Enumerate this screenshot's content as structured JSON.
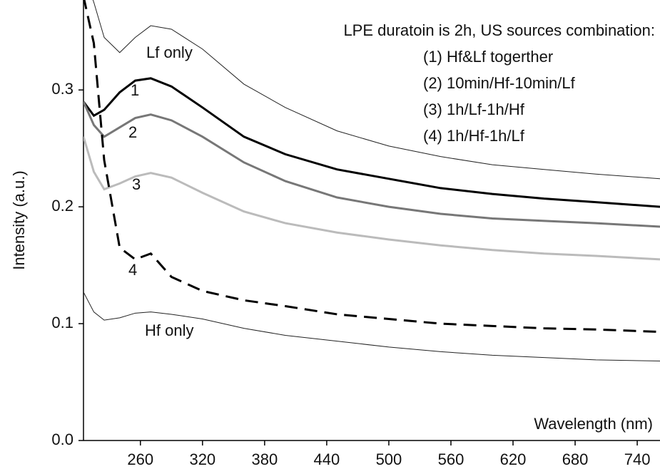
{
  "chart_data": {
    "type": "line",
    "x_label": "Wavelength (nm)",
    "y_label": "Intensity (a.u.)",
    "annotations": [
      "LPE duratoin is 2h, US sources combination:",
      "(1) Hf&Lf togerther",
      "(2) 10min/Hf-10min/Lf",
      "(3) 1h/Lf-1h/Hf",
      "(4) 1h/Hf-1h/Lf"
    ],
    "x": [
      205,
      215,
      225,
      240,
      255,
      270,
      290,
      320,
      360,
      400,
      450,
      500,
      550,
      600,
      650,
      700,
      762
    ],
    "xlim": [
      205,
      762
    ],
    "xticks": [
      260,
      320,
      380,
      440,
      500,
      560,
      620,
      680,
      740
    ],
    "ylim": [
      0,
      0.377
    ],
    "yticks": [
      {
        "value": 0,
        "label": "0.0"
      },
      0.1,
      0.2,
      0.3
    ],
    "series": [
      {
        "name": "Lf only",
        "color": "#222222",
        "width": 1,
        "dashed": false,
        "values": [
          0.4,
          0.375,
          0.345,
          0.332,
          0.345,
          0.355,
          0.352,
          0.335,
          0.305,
          0.285,
          0.265,
          0.252,
          0.243,
          0.236,
          0.232,
          0.228,
          0.224
        ]
      },
      {
        "name": "1",
        "color": "#000000",
        "width": 3,
        "dashed": false,
        "values": [
          0.29,
          0.278,
          0.283,
          0.298,
          0.308,
          0.31,
          0.303,
          0.285,
          0.26,
          0.245,
          0.232,
          0.224,
          0.216,
          0.211,
          0.207,
          0.204,
          0.2
        ]
      },
      {
        "name": "2",
        "color": "#777777",
        "width": 3,
        "dashed": false,
        "values": [
          0.29,
          0.27,
          0.26,
          0.268,
          0.276,
          0.279,
          0.274,
          0.26,
          0.238,
          0.222,
          0.208,
          0.2,
          0.194,
          0.19,
          0.188,
          0.186,
          0.183
        ]
      },
      {
        "name": "3",
        "color": "#bbbbbb",
        "width": 3,
        "dashed": false,
        "values": [
          0.26,
          0.23,
          0.215,
          0.22,
          0.226,
          0.229,
          0.225,
          0.212,
          0.196,
          0.186,
          0.178,
          0.172,
          0.167,
          0.163,
          0.16,
          0.158,
          0.155
        ]
      },
      {
        "name": "4",
        "color": "#000000",
        "width": 3,
        "dashed": true,
        "values": [
          0.38,
          0.34,
          0.24,
          0.165,
          0.155,
          0.16,
          0.14,
          0.128,
          0.12,
          0.115,
          0.108,
          0.104,
          0.1,
          0.098,
          0.096,
          0.095,
          0.093
        ]
      },
      {
        "name": "Hf only",
        "color": "#222222",
        "width": 1,
        "dashed": false,
        "values": [
          0.127,
          0.11,
          0.103,
          0.105,
          0.109,
          0.11,
          0.108,
          0.104,
          0.096,
          0.09,
          0.085,
          0.08,
          0.076,
          0.073,
          0.071,
          0.069,
          0.068
        ]
      }
    ]
  }
}
